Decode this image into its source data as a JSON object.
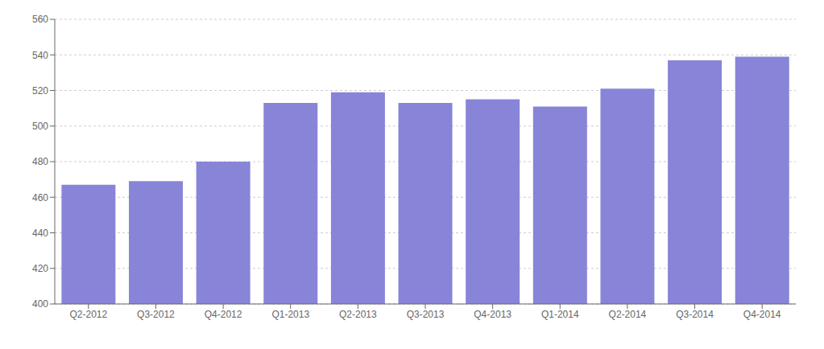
{
  "chart_data": {
    "type": "bar",
    "categories": [
      "Q2-2012",
      "Q3-2012",
      "Q4-2012",
      "Q1-2013",
      "Q2-2013",
      "Q3-2013",
      "Q4-2013",
      "Q1-2014",
      "Q2-2014",
      "Q3-2014",
      "Q4-2014"
    ],
    "values": [
      467,
      469,
      480,
      513,
      519,
      513,
      515,
      511,
      521,
      537,
      539
    ],
    "ylim": [
      400,
      560
    ],
    "yticks": [
      400,
      420,
      440,
      460,
      480,
      500,
      520,
      540,
      560
    ],
    "grid": true
  }
}
